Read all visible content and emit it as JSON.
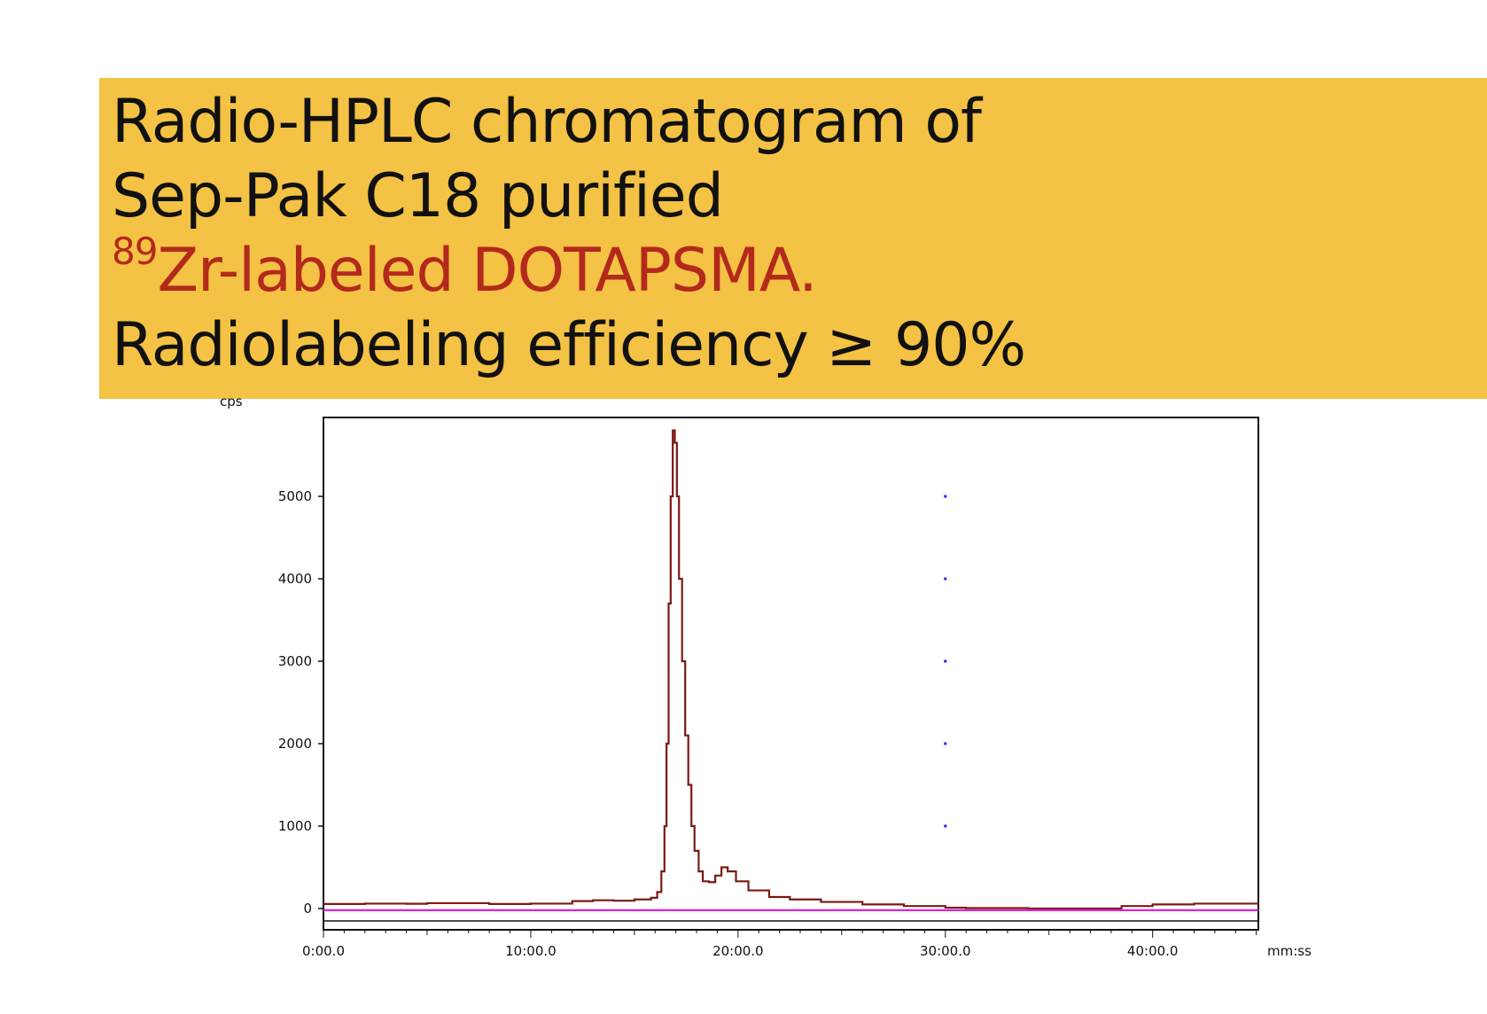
{
  "title": {
    "line1": "Radio-HPLC chromatogram of",
    "line2": "Sep-Pak C18 purified",
    "line3_sup": "89",
    "line3": "Zr-labeled DOTAPSMA.",
    "line4": "Radiolabeling efficiency ≥ 90%"
  },
  "colors": {
    "title_background": "#f4c244",
    "highlight_text": "#b3291c",
    "trace": "#7a1a14",
    "baseline": "#e020e0",
    "marker": "#2020ff"
  },
  "chart_data": {
    "type": "line",
    "xlabel": "mm:ss",
    "ylabel": "cps",
    "xlim": [
      0,
      45.1
    ],
    "ylim": [
      -120,
      5960
    ],
    "x_ticks": [
      {
        "value": 0,
        "label": "0:00.0"
      },
      {
        "value": 10,
        "label": "10:00.0"
      },
      {
        "value": 20,
        "label": "20:00.0"
      },
      {
        "value": 30,
        "label": "30:00.0"
      },
      {
        "value": 40,
        "label": "40:00.0"
      }
    ],
    "y_ticks": [
      {
        "value": 0,
        "label": "0"
      },
      {
        "value": 1000,
        "label": "1000"
      },
      {
        "value": 2000,
        "label": "2000"
      },
      {
        "value": 3000,
        "label": "3000"
      },
      {
        "value": 4000,
        "label": "4000"
      },
      {
        "value": 5000,
        "label": "5000"
      }
    ],
    "grid": false,
    "series": [
      {
        "x": [
          0,
          2,
          4,
          5,
          8,
          10,
          12,
          13,
          14,
          15,
          15.8,
          16.1,
          16.3,
          16.45,
          16.55,
          16.65,
          16.75,
          16.85,
          16.95,
          17.05,
          17.15,
          17.3,
          17.45,
          17.6,
          17.75,
          17.9,
          18.1,
          18.3,
          18.6,
          18.9,
          19.2,
          19.5,
          19.9,
          20.5,
          21.5,
          22.5,
          24,
          26,
          28,
          30,
          31,
          34,
          38,
          38.5,
          40,
          42,
          45.1
        ],
        "y": [
          55,
          60,
          58,
          65,
          55,
          60,
          90,
          100,
          95,
          110,
          130,
          200,
          450,
          1000,
          2000,
          3700,
          5000,
          5800,
          5650,
          5000,
          4000,
          3000,
          2100,
          1500,
          1000,
          700,
          450,
          330,
          320,
          400,
          500,
          450,
          330,
          220,
          140,
          110,
          80,
          50,
          30,
          10,
          5,
          0,
          0,
          30,
          50,
          60,
          65
        ]
      },
      {
        "x": [
          0,
          45.1
        ],
        "y": [
          -20,
          -20
        ]
      }
    ],
    "markers": {
      "x": 30,
      "y": [
        1000,
        2000,
        3000,
        4000,
        5000
      ]
    }
  }
}
